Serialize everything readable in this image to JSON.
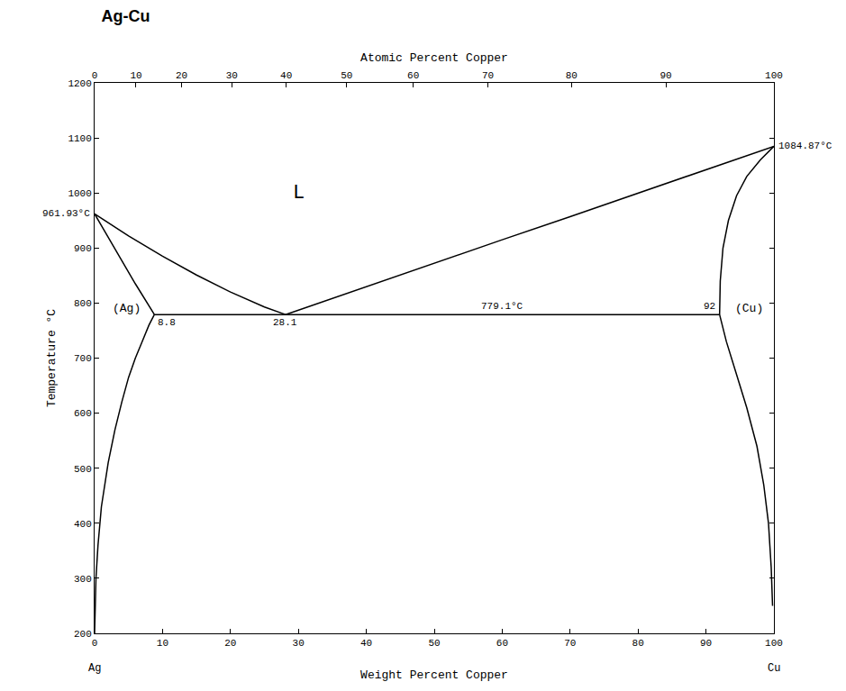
{
  "chart_data": {
    "type": "line",
    "title": "Ag-Cu",
    "x_label": "Weight Percent Copper",
    "x2_label": "Atomic Percent Copper",
    "y_label": "Temperature °C",
    "xlim": [
      0,
      100
    ],
    "xticks": [
      0,
      10,
      20,
      30,
      40,
      50,
      60,
      70,
      80,
      90,
      100
    ],
    "x2lim": [
      0,
      100
    ],
    "x2ticks": [
      {
        "value": 0,
        "label": "0"
      },
      {
        "value": 6.1,
        "label": "10"
      },
      {
        "value": 12.8,
        "label": "20"
      },
      {
        "value": 20.2,
        "label": "30"
      },
      {
        "value": 28.2,
        "label": "40"
      },
      {
        "value": 37.1,
        "label": "50"
      },
      {
        "value": 46.9,
        "label": "60"
      },
      {
        "value": 57.9,
        "label": "70"
      },
      {
        "value": 70.2,
        "label": "80"
      },
      {
        "value": 84.1,
        "label": "90"
      },
      {
        "value": 100,
        "label": "100"
      }
    ],
    "ylim": [
      200,
      1200
    ],
    "yticks": [
      200,
      300,
      400,
      500,
      600,
      700,
      800,
      900,
      1000,
      1100,
      1200
    ],
    "grid": false,
    "color": "#000000",
    "line_style": "solid",
    "series": [
      {
        "x": [
          0,
          5,
          10,
          15,
          20,
          25,
          28.1
        ],
        "values": [
          961.93,
          922,
          885,
          851,
          820,
          793,
          779.1
        ]
      },
      {
        "x": [
          28.1,
          40,
          50,
          60,
          70,
          80,
          90,
          100
        ],
        "values": [
          779.1,
          830,
          872,
          915,
          957,
          1000,
          1042,
          1084.87
        ]
      },
      {
        "x": [
          0,
          2,
          4,
          6,
          8.8
        ],
        "values": [
          961.93,
          920,
          877,
          835,
          779.1
        ]
      },
      {
        "x": [
          8.8,
          8,
          7,
          6,
          5,
          4,
          3,
          2,
          1,
          0.5,
          0.2,
          0
        ],
        "values": [
          779.1,
          760,
          730,
          700,
          665,
          620,
          570,
          510,
          430,
          360,
          300,
          200
        ]
      },
      {
        "x": [
          8.8,
          92
        ],
        "values": [
          779.1,
          779.1
        ]
      },
      {
        "x": [
          100,
          98,
          96,
          94.5,
          93.3,
          92.5,
          92.1,
          92
        ],
        "values": [
          1084.87,
          1060,
          1030,
          995,
          950,
          900,
          840,
          779.1
        ]
      },
      {
        "x": [
          92,
          93,
          94.5,
          96,
          97.5,
          98.5,
          99.2,
          99.6,
          99.8
        ],
        "values": [
          779.1,
          730,
          670,
          610,
          540,
          470,
          400,
          320,
          250
        ]
      }
    ],
    "annotations": [
      {
        "text": "L",
        "x": 30,
        "y": 1000
      },
      {
        "text": "(Ag)",
        "x": 7,
        "y": 790
      },
      {
        "text": "(Cu)",
        "x": 94,
        "y": 790
      },
      {
        "text": "8.8",
        "x": 8.8,
        "y": 779.1
      },
      {
        "text": "28.1",
        "x": 28.1,
        "y": 779.1
      },
      {
        "text": "779.1°C",
        "x": 60,
        "y": 779.1
      },
      {
        "text": "92",
        "x": 92,
        "y": 779.1
      },
      {
        "text": "961.93°C",
        "x": 0,
        "y": 961.93
      },
      {
        "text": "1084.87°C",
        "x": 100,
        "y": 1084.87
      }
    ],
    "end_labels": [
      {
        "text": "Ag",
        "x": 0
      },
      {
        "text": "Cu",
        "x": 100
      }
    ]
  }
}
